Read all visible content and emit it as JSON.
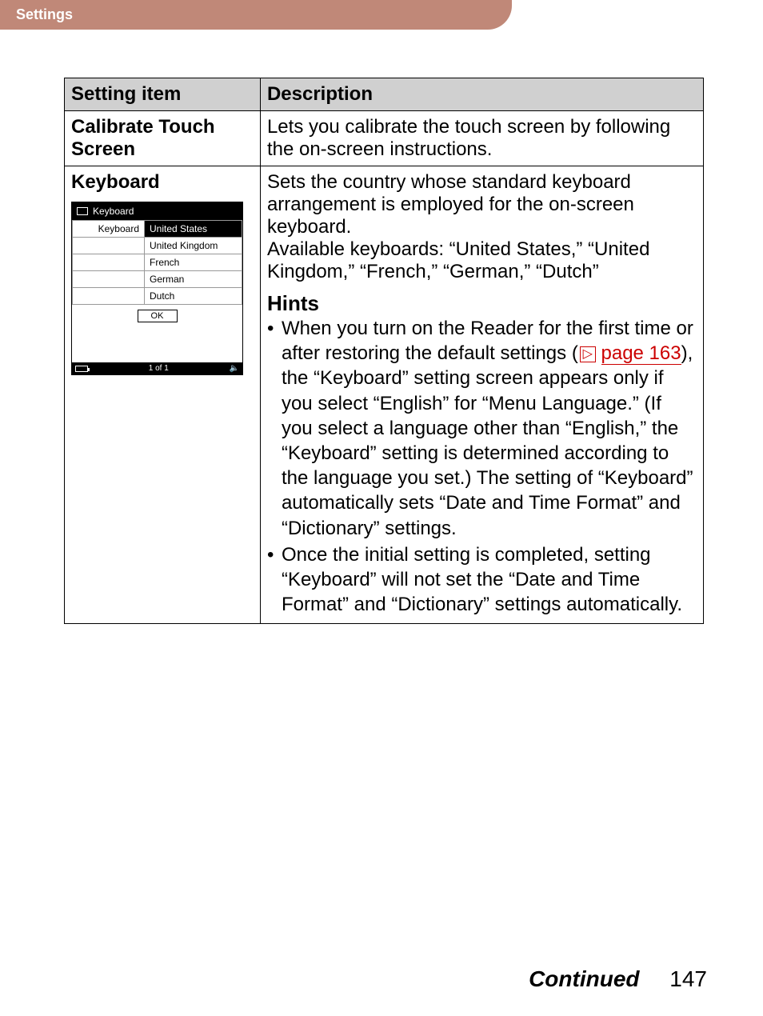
{
  "header": {
    "section": "Settings"
  },
  "table": {
    "columns": [
      "Setting item",
      "Description"
    ],
    "rows": [
      {
        "item": "Calibrate Touch Screen",
        "description": "Lets you calibrate the touch screen by following the on-screen instructions."
      },
      {
        "item": "Keyboard",
        "description": "Sets the country whose standard keyboard arrangement is employed for the on-screen keyboard.\nAvailable keyboards: “United States,” “United Kingdom,” “French,” “German,” “Dutch”",
        "device": {
          "title": "Keyboard",
          "label": "Keyboard",
          "options": [
            "United States",
            "United Kingdom",
            "French",
            "German",
            "Dutch"
          ],
          "selected_index": 0,
          "ok_label": "OK",
          "page_indicator": "1 of 1"
        },
        "hints_title": "Hints",
        "hints": [
          {
            "pre": "When you turn on the Reader for the first time or after restoring the default settings (",
            "link": "page 163",
            "post": "), the “Keyboard” setting screen appears only if you select “English” for “Menu Language.” (If you select a language other than “English,” the “Keyboard” setting is determined according to the language you set.) The setting of “Keyboard” automatically sets “Date and Time Format” and “Dictionary” settings."
          },
          {
            "text": "Once the initial setting is completed, setting “Keyboard” will not set the “Date and Time Format” and “Dictionary” settings automatically."
          }
        ]
      }
    ]
  },
  "footer": {
    "continued": "Continued",
    "page": "147"
  },
  "colors": {
    "tab_bg": "#c08878",
    "tab_text": "#ffffff",
    "th_bg": "#d0d0d0",
    "link": "#cc0000",
    "border": "#000000"
  }
}
